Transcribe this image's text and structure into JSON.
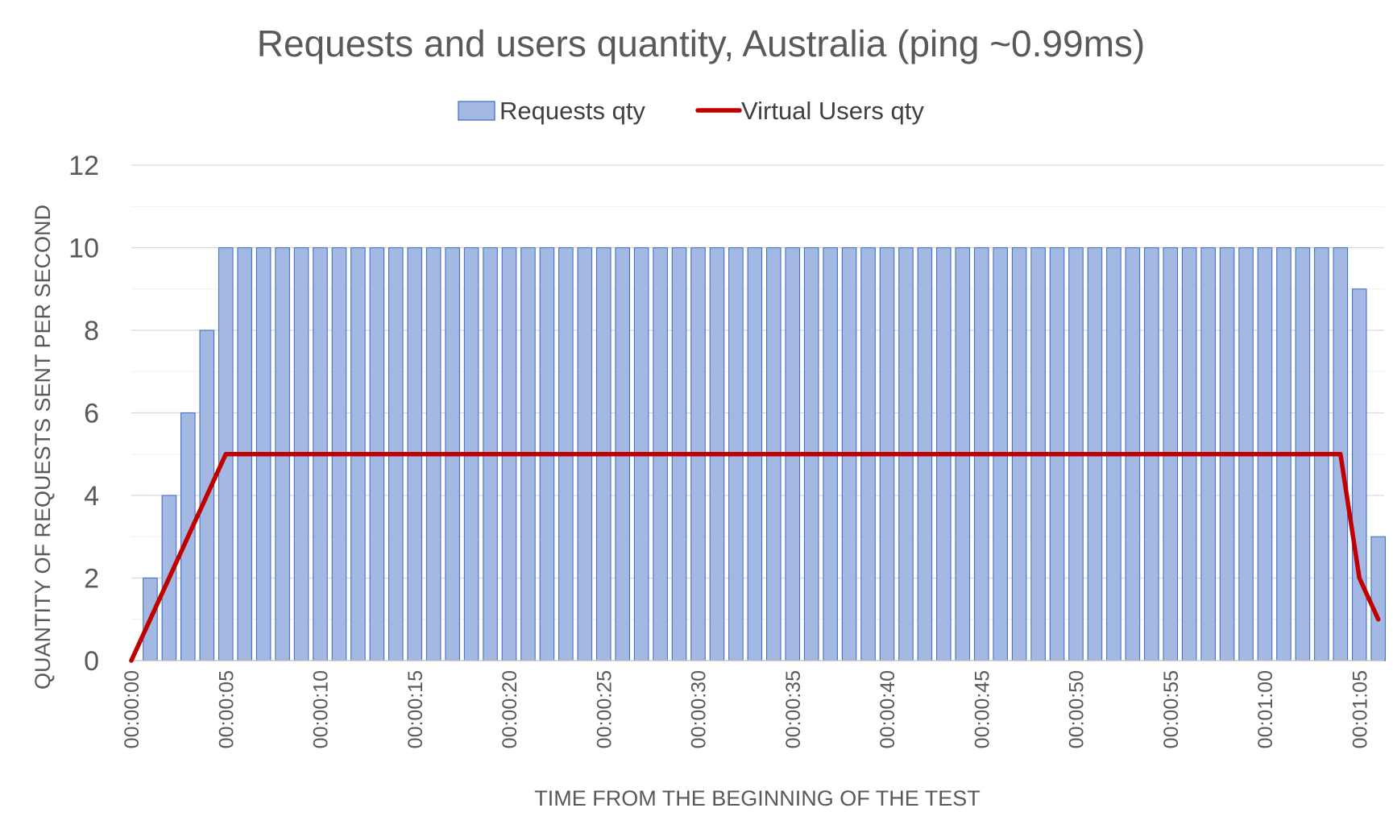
{
  "chart_data": {
    "type": "bar",
    "title": "Requests and users quantity, Australia (ping ~0.99ms)",
    "xlabel": "TIME FROM THE BEGINNING OF THE TEST",
    "ylabel": "QUANTITY OF REQUESTS SENT PER SECOND",
    "ylim": [
      0,
      12
    ],
    "yticks": [
      0,
      2,
      4,
      6,
      8,
      10,
      12
    ],
    "grid": true,
    "legend_position": "top-center",
    "x_tick_labels": [
      "00:00:00",
      "00:00:05",
      "00:00:10",
      "00:00:15",
      "00:00:20",
      "00:00:25",
      "00:00:30",
      "00:00:35",
      "00:00:40",
      "00:00:45",
      "00:00:50",
      "00:00:55",
      "00:01:00",
      "00:01:05"
    ],
    "x_tick_seconds": [
      0,
      5,
      10,
      15,
      20,
      25,
      30,
      35,
      40,
      45,
      50,
      55,
      60,
      65
    ],
    "x_seconds": [
      0,
      1,
      2,
      3,
      4,
      5,
      6,
      7,
      8,
      9,
      10,
      11,
      12,
      13,
      14,
      15,
      16,
      17,
      18,
      19,
      20,
      21,
      22,
      23,
      24,
      25,
      26,
      27,
      28,
      29,
      30,
      31,
      32,
      33,
      34,
      35,
      36,
      37,
      38,
      39,
      40,
      41,
      42,
      43,
      44,
      45,
      46,
      47,
      48,
      49,
      50,
      51,
      52,
      53,
      54,
      55,
      56,
      57,
      58,
      59,
      60,
      61,
      62,
      63,
      64,
      65,
      66
    ],
    "series": [
      {
        "name": "Requests qty",
        "type": "bar",
        "color": "#a4b8e4",
        "border_color": "#4472c4",
        "values": [
          0,
          2,
          4,
          6,
          8,
          10,
          10,
          10,
          10,
          10,
          10,
          10,
          10,
          10,
          10,
          10,
          10,
          10,
          10,
          10,
          10,
          10,
          10,
          10,
          10,
          10,
          10,
          10,
          10,
          10,
          10,
          10,
          10,
          10,
          10,
          10,
          10,
          10,
          10,
          10,
          10,
          10,
          10,
          10,
          10,
          10,
          10,
          10,
          10,
          10,
          10,
          10,
          10,
          10,
          10,
          10,
          10,
          10,
          10,
          10,
          10,
          10,
          10,
          10,
          10,
          9,
          3
        ]
      },
      {
        "name": "Virtual Users qty",
        "type": "line",
        "color": "#c00000",
        "values": [
          0,
          1,
          2,
          3,
          4,
          5,
          5,
          5,
          5,
          5,
          5,
          5,
          5,
          5,
          5,
          5,
          5,
          5,
          5,
          5,
          5,
          5,
          5,
          5,
          5,
          5,
          5,
          5,
          5,
          5,
          5,
          5,
          5,
          5,
          5,
          5,
          5,
          5,
          5,
          5,
          5,
          5,
          5,
          5,
          5,
          5,
          5,
          5,
          5,
          5,
          5,
          5,
          5,
          5,
          5,
          5,
          5,
          5,
          5,
          5,
          5,
          5,
          5,
          5,
          5,
          2,
          1
        ]
      }
    ]
  }
}
